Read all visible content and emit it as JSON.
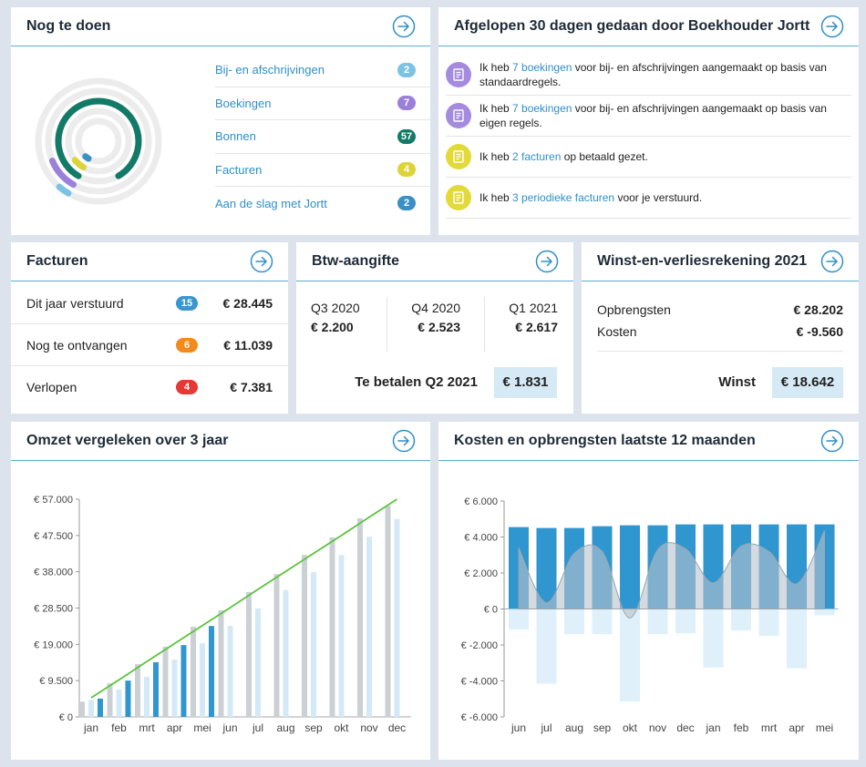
{
  "todo": {
    "title": "Nog te doen",
    "items": [
      {
        "label": "Bij- en afschrijvingen",
        "count": 2,
        "color": "#7cc3e3"
      },
      {
        "label": "Boekingen",
        "count": 7,
        "color": "#9b80da"
      },
      {
        "label": "Bonnen",
        "count": 57,
        "color": "#127a66"
      },
      {
        "label": "Facturen",
        "count": 4,
        "color": "#ddd43a"
      },
      {
        "label": "Aan de slag met Jortt",
        "count": 2,
        "color": "#3a8fc4"
      }
    ]
  },
  "activity": {
    "title": "Afgelopen 30 dagen gedaan door Boekhouder Jortt",
    "items": [
      {
        "before": "Ik heb ",
        "link": "7 boekingen",
        "after": " voor bij- en afschrijvingen aangemaakt op basis van standaardregels.",
        "color": "#a58be0"
      },
      {
        "before": "Ik heb ",
        "link": "7 boekingen",
        "after": " voor bij- en afschrijvingen aangemaakt op basis van eigen regels.",
        "color": "#a58be0"
      },
      {
        "before": "Ik heb ",
        "link": "2 facturen",
        "after": " op betaald gezet.",
        "color": "#e2da3a"
      },
      {
        "before": "Ik heb ",
        "link": "3 periodieke facturen",
        "after": " voor je verstuurd.",
        "color": "#e2da3a"
      }
    ]
  },
  "invoices": {
    "title": "Facturen",
    "rows": [
      {
        "label": "Dit jaar verstuurd",
        "count": 15,
        "color": "#3a96cf",
        "amount": "€ 28.445"
      },
      {
        "label": "Nog te ontvangen",
        "count": 6,
        "color": "#f28a1c",
        "amount": "€ 11.039"
      },
      {
        "label": "Verlopen",
        "count": 4,
        "color": "#e53935",
        "amount": "€ 7.381"
      }
    ]
  },
  "vat": {
    "title": "Btw-aangifte",
    "quarters": [
      {
        "label": "Q3 2020",
        "amount": "€ 2.200"
      },
      {
        "label": "Q4 2020",
        "amount": "€ 2.523"
      },
      {
        "label": "Q1 2021",
        "amount": "€ 2.617"
      }
    ],
    "due_label": "Te betalen Q2 2021",
    "due_amount": "€ 1.831"
  },
  "pnl": {
    "title": "Winst-en-verliesrekening 2021",
    "rows": [
      {
        "label": "Opbrengsten",
        "amount": "€ 28.202"
      },
      {
        "label": "Kosten",
        "amount": "€ -9.560"
      }
    ],
    "result_label": "Winst",
    "result_amount": "€ 18.642"
  },
  "chart_data": [
    {
      "type": "bar",
      "title": "Omzet vergeleken over 3 jaar",
      "categories": [
        "jan",
        "feb",
        "mrt",
        "apr",
        "mei",
        "jun",
        "jul",
        "aug",
        "sep",
        "okt",
        "nov",
        "dec"
      ],
      "ylim": [
        0,
        57000
      ],
      "yticks": [
        {
          "value": 0,
          "label": "€ 0"
        },
        {
          "value": 9500,
          "label": "€ 9.500"
        },
        {
          "value": 19000,
          "label": "€ 19.000"
        },
        {
          "value": 28500,
          "label": "€ 28.500"
        },
        {
          "value": 38000,
          "label": "€ 38.000"
        },
        {
          "value": 47500,
          "label": "€ 47.500"
        },
        {
          "value": 57000,
          "label": "€ 57.000"
        }
      ],
      "series": [
        {
          "type": "bar",
          "color": "#cbd0d5",
          "values": [
            4000,
            8800,
            13800,
            18400,
            23600,
            27900,
            32700,
            37400,
            42400,
            47000,
            52000,
            55300
          ]
        },
        {
          "type": "bar",
          "color": "#d4e9f7",
          "values": [
            4500,
            7200,
            10500,
            15000,
            19300,
            23800,
            28400,
            33200,
            37900,
            42400,
            47200,
            51800
          ]
        },
        {
          "type": "bar",
          "color": "#2f96cf",
          "values": [
            4800,
            9500,
            14300,
            18800,
            23800,
            null,
            null,
            null,
            null,
            null,
            null,
            null
          ]
        },
        {
          "type": "line",
          "color": "#5ac43c",
          "values": [
            5000,
            9700,
            14500,
            19200,
            23900,
            28600,
            33400,
            38100,
            42800,
            47500,
            52300,
            57000
          ]
        }
      ]
    },
    {
      "type": "bar",
      "title": "Kosten en opbrengsten laatste 12 maanden",
      "categories": [
        "jun",
        "jul",
        "aug",
        "sep",
        "okt",
        "nov",
        "dec",
        "jan",
        "feb",
        "mrt",
        "apr",
        "mei"
      ],
      "ylim": [
        -6000,
        6000
      ],
      "yticks": [
        {
          "value": -6000,
          "label": "€ -6.000"
        },
        {
          "value": -4000,
          "label": "€ -4.000"
        },
        {
          "value": -2000,
          "label": "€ -2.000"
        },
        {
          "value": 0,
          "label": "€ 0"
        },
        {
          "value": 2000,
          "label": "€ 2.000"
        },
        {
          "value": 4000,
          "label": "€ 4.000"
        },
        {
          "value": 6000,
          "label": "€ 6.000"
        }
      ],
      "series": [
        {
          "type": "bar",
          "color": "#2f96cf",
          "values": [
            4550,
            4500,
            4500,
            4600,
            4650,
            4650,
            4700,
            4700,
            4700,
            4700,
            4700,
            4700
          ]
        },
        {
          "type": "bar",
          "color": "#dff0fa",
          "values": [
            -1150,
            -4150,
            -1400,
            -1400,
            -5150,
            -1400,
            -1350,
            -3250,
            -1200,
            -1500,
            -3300,
            -350
          ]
        },
        {
          "type": "area",
          "color": "#b8c2cb",
          "values": [
            3400,
            350,
            3100,
            3200,
            -500,
            3300,
            3350,
            1450,
            3500,
            3200,
            1400,
            4350
          ]
        }
      ]
    }
  ]
}
